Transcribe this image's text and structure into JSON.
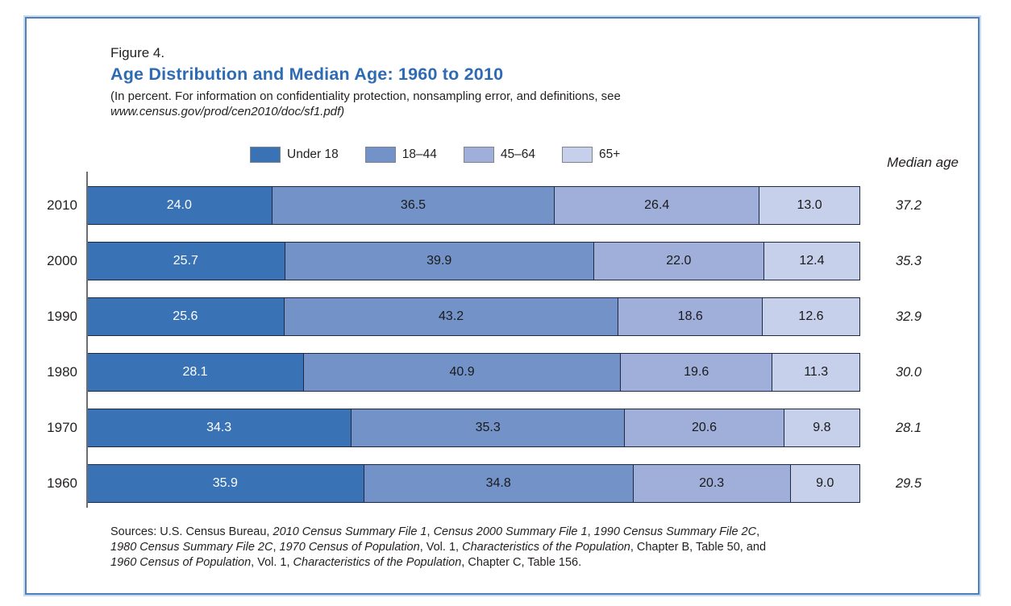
{
  "header": {
    "figure_label": "Figure 4.",
    "title": "Age Distribution and Median Age: 1960 to 2010",
    "subtitle_line1": "(In percent. For information on confidentiality protection, nonsampling error, and definitions, see",
    "subtitle_line2": "www.census.gov/prod/cen2010/doc/sf1.pdf)"
  },
  "chart_data": {
    "type": "bar",
    "stacked": true,
    "orientation": "horizontal",
    "unit": "percent",
    "title": "Age Distribution and Median Age: 1960 to 2010",
    "xlim": [
      0,
      100
    ],
    "grid": false,
    "legend_position": "top",
    "categories": [
      "2010",
      "2000",
      "1990",
      "1980",
      "1970",
      "1960"
    ],
    "series": [
      {
        "name": "Under 18",
        "color": "#3973b6",
        "label_color": "#ffffff",
        "values": [
          24.0,
          25.7,
          25.6,
          28.1,
          34.3,
          35.9
        ],
        "labels": [
          "24.0",
          "25.7",
          "25.6",
          "28.1",
          "34.3",
          "35.9"
        ]
      },
      {
        "name": "18–44",
        "color": "#7292c8",
        "label_color": "#1a1a1a",
        "values": [
          36.5,
          39.9,
          43.2,
          40.9,
          35.3,
          34.8
        ],
        "labels": [
          "36.5",
          "39.9",
          "43.2",
          "40.9",
          "35.3",
          "34.8"
        ]
      },
      {
        "name": "45–64",
        "color": "#9fafda",
        "label_color": "#1a1a1a",
        "values": [
          26.4,
          22.0,
          18.6,
          19.6,
          20.6,
          20.3
        ],
        "labels": [
          "26.4",
          "22.0",
          "18.6",
          "19.6",
          "20.6",
          "20.3"
        ]
      },
      {
        "name": "65+",
        "color": "#c6d0ea",
        "label_color": "#1a1a1a",
        "values": [
          13.0,
          12.4,
          12.6,
          11.3,
          9.8,
          9.0
        ],
        "labels": [
          "13.0",
          "12.4",
          "12.6",
          "11.3",
          "9.8",
          "9.0"
        ]
      }
    ],
    "median_age_header": "Median age",
    "median_age": [
      37.2,
      35.3,
      32.9,
      30.0,
      28.1,
      29.5
    ],
    "median_age_labels": [
      "37.2",
      "35.3",
      "32.9",
      "30.0",
      "28.1",
      "29.5"
    ]
  },
  "sources": {
    "lines": [
      [
        {
          "t": "Sources: U.S. Census Bureau, ",
          "i": false
        },
        {
          "t": "2010 Census Summary File 1",
          "i": true
        },
        {
          "t": ", ",
          "i": false
        },
        {
          "t": "Census 2000 Summary File 1",
          "i": true
        },
        {
          "t": ", ",
          "i": false
        },
        {
          "t": "1990 Census Summary File 2C",
          "i": true
        },
        {
          "t": ",",
          "i": false
        }
      ],
      [
        {
          "t": "1980 Census Summary File 2C",
          "i": true
        },
        {
          "t": ", ",
          "i": false
        },
        {
          "t": "1970 Census of Population",
          "i": true
        },
        {
          "t": ", Vol. 1, ",
          "i": false
        },
        {
          "t": "Characteristics of the Population",
          "i": true
        },
        {
          "t": ", Chapter B, Table 50, and",
          "i": false
        }
      ],
      [
        {
          "t": "1960 Census of Population",
          "i": true
        },
        {
          "t": ", Vol. 1, ",
          "i": false
        },
        {
          "t": "Characteristics of the Population",
          "i": true
        },
        {
          "t": ", Chapter C, Table 156.",
          "i": false
        }
      ]
    ]
  }
}
